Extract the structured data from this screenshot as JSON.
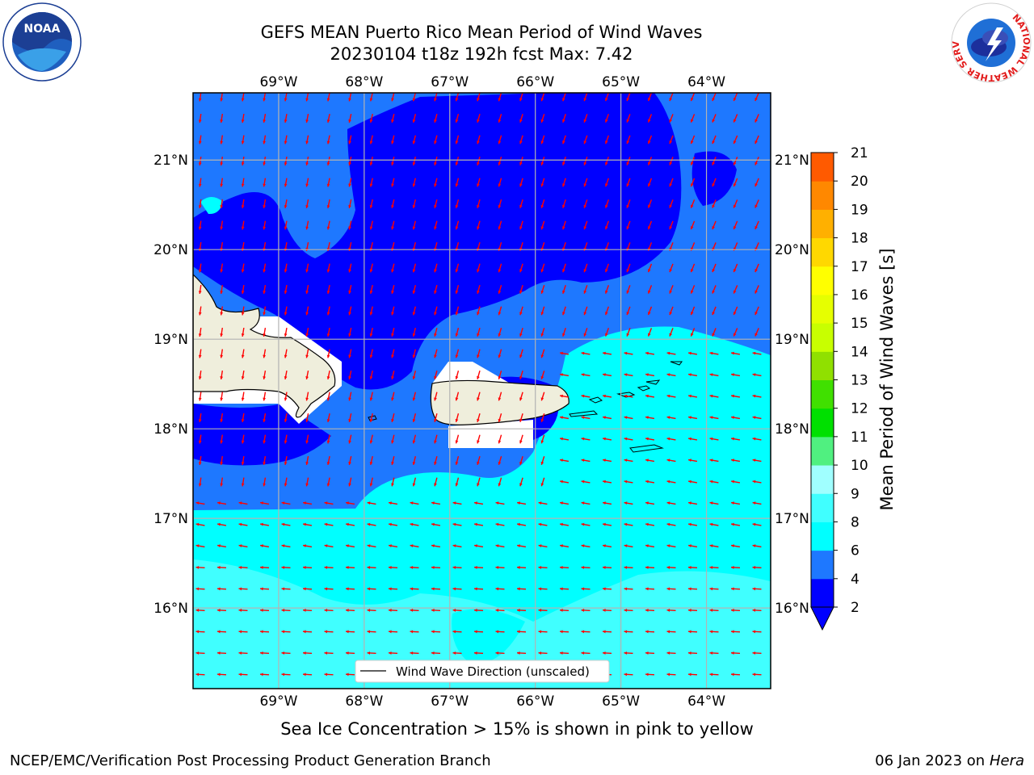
{
  "title": {
    "line1": "GEFS MEAN Puerto Rico Mean Period of Wind Waves",
    "line2": "20230104 t18z 192h fcst   Max: 7.42"
  },
  "map": {
    "lon_labels": [
      "69°W",
      "68°W",
      "67°W",
      "66°W",
      "65°W",
      "64°W"
    ],
    "lat_labels": [
      "21°N",
      "20°N",
      "19°N",
      "18°N",
      "17°N",
      "16°N"
    ],
    "lon_values": [
      -69,
      -68,
      -67,
      -66,
      -65,
      -64
    ],
    "lat_values": [
      21,
      20,
      19,
      18,
      17,
      16
    ],
    "lon_range": [
      -70,
      -63.25
    ],
    "lat_range": [
      15.1,
      21.75
    ],
    "legend_label": "Wind Wave Direction (unscaled)",
    "arrow_color": "#ff0000",
    "land_color": "#efeedc",
    "grid_color": "#b3b3b3"
  },
  "colorbar": {
    "title": "Mean Period of Wind Waves [s]",
    "tick_labels": [
      "2",
      "4",
      "6",
      "8",
      "9",
      "10",
      "11",
      "12",
      "13",
      "14",
      "15",
      "16",
      "17",
      "18",
      "19",
      "20",
      "21"
    ],
    "colors": [
      "#0000ff",
      "#1e78ff",
      "#00ffff",
      "#40ffff",
      "#a0ffff",
      "#50f080",
      "#00e000",
      "#40e000",
      "#90e000",
      "#c8ff00",
      "#e6ff00",
      "#ffff00",
      "#ffd800",
      "#ffb000",
      "#ff8800",
      "#ff5a00",
      "#ff2a00",
      "#ff0000"
    ]
  },
  "caption": "Sea Ice Concentration > 15% is shown in pink to yellow",
  "footer": {
    "left": "NCEP/EMC/Verification Post Processing Product Generation Branch",
    "right_date": "06 Jan 2023 on ",
    "right_host": "Hera"
  },
  "logos": {
    "noaa_text": "NOAA",
    "nws_text": "NATIONAL WEATHER SERVICE"
  }
}
